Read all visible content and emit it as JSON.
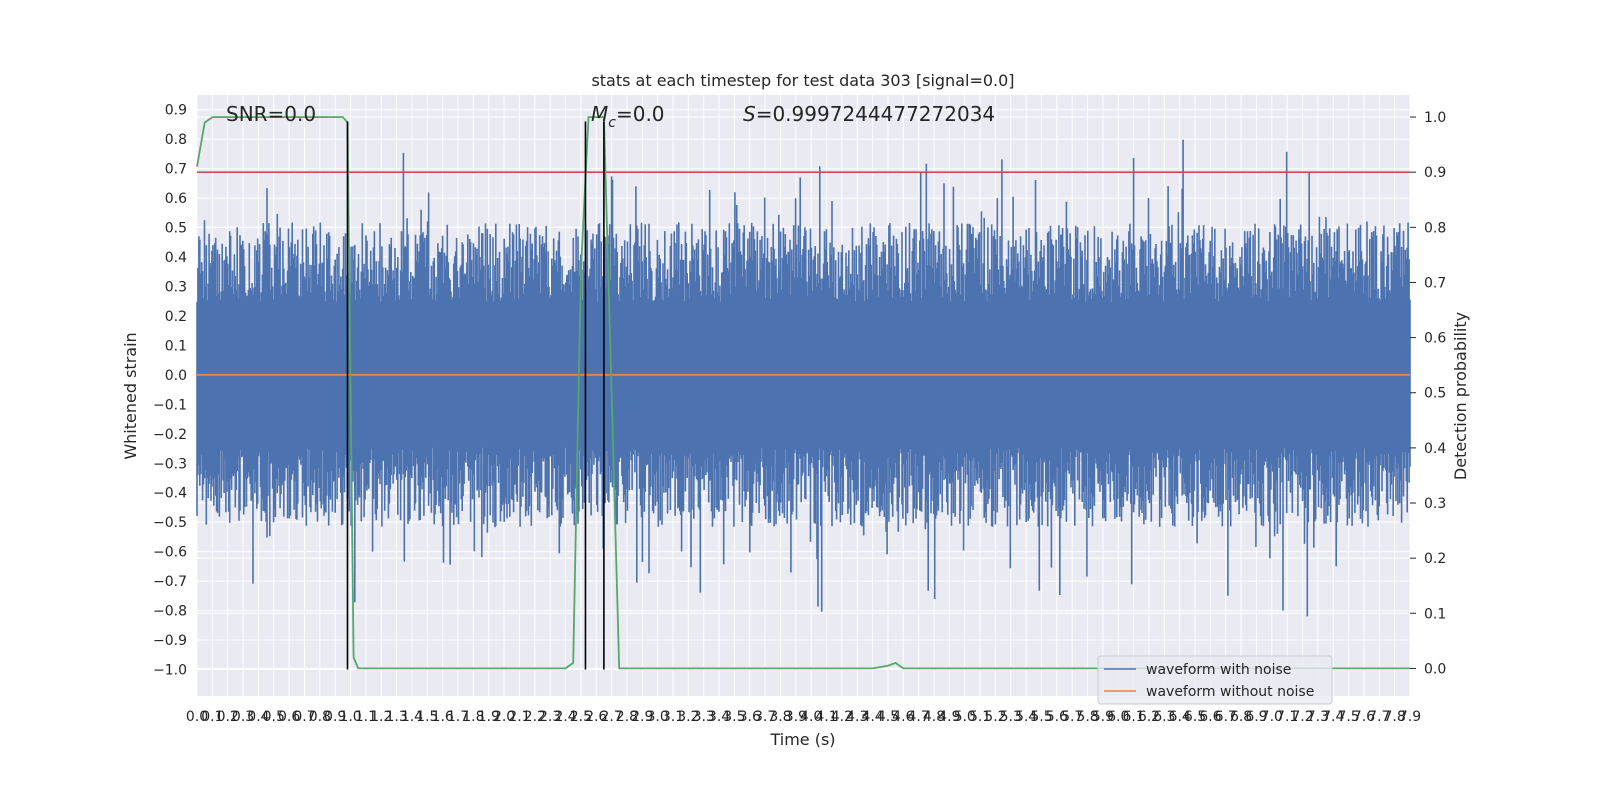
{
  "chart_data": {
    "type": "line",
    "title": "stats at each timestep for test data 303 [signal=0.0]",
    "xlabel": "Time (s)",
    "ylabel_left": "Whitened strain",
    "ylabel_right": "Detection probability",
    "xlim": [
      0.0,
      7.9
    ],
    "ylim_left": [
      -1.09,
      0.95
    ],
    "ylim_right": [
      -0.05,
      1.04
    ],
    "grid": true,
    "legend_position": "lower-right",
    "x_ticks": [
      "0.0",
      "0.1",
      "0.2",
      "0.3",
      "0.4",
      "0.5",
      "0.6",
      "0.7",
      "0.8",
      "0.9",
      "1.0",
      "1.1",
      "1.2",
      "1.3",
      "1.4",
      "1.5",
      "1.6",
      "1.7",
      "1.8",
      "1.9",
      "2.0",
      "2.1",
      "2.2",
      "2.3",
      "2.4",
      "2.5",
      "2.6",
      "2.7",
      "2.8",
      "2.9",
      "3.0",
      "3.1",
      "3.2",
      "3.3",
      "3.4",
      "3.5",
      "3.6",
      "3.7",
      "3.8",
      "3.9",
      "4.0",
      "4.1",
      "4.2",
      "4.3",
      "4.4",
      "4.5",
      "4.6",
      "4.7",
      "4.8",
      "4.9",
      "5.0",
      "5.1",
      "5.2",
      "5.3",
      "5.4",
      "5.5",
      "5.6",
      "5.7",
      "5.8",
      "5.9",
      "6.0",
      "6.1",
      "6.2",
      "6.3",
      "6.4",
      "6.5",
      "6.6",
      "6.7",
      "6.8",
      "6.9",
      "7.0",
      "7.1",
      "7.2",
      "7.3",
      "7.4",
      "7.5",
      "7.6",
      "7.7",
      "7.8",
      "7.9"
    ],
    "y_ticks_left": [
      "0.9",
      "0.8",
      "0.7",
      "0.6",
      "0.5",
      "0.4",
      "0.3",
      "0.2",
      "0.1",
      "0.0",
      "−0.1",
      "−0.2",
      "−0.3",
      "−0.4",
      "−0.5",
      "−0.6",
      "−0.7",
      "−0.8",
      "−0.9",
      "−1.0"
    ],
    "y_ticks_left_values": [
      0.9,
      0.8,
      0.7,
      0.6,
      0.5,
      0.4,
      0.3,
      0.2,
      0.1,
      0.0,
      -0.1,
      -0.2,
      -0.3,
      -0.4,
      -0.5,
      -0.6,
      -0.7,
      -0.8,
      -0.9,
      -1.0
    ],
    "y_ticks_right": [
      "1.0",
      "0.9",
      "0.8",
      "0.7",
      "0.6",
      "0.5",
      "0.4",
      "0.3",
      "0.2",
      "0.1",
      "0.0"
    ],
    "y_ticks_right_values": [
      1.0,
      0.9,
      0.8,
      0.7,
      0.6,
      0.5,
      0.4,
      0.3,
      0.2,
      0.1,
      0.0
    ],
    "annotations": {
      "snr": "SNR=0.0",
      "mc_symbol": "M",
      "mc_sub": "c",
      "mc_value": "=0.0",
      "s_symbol": "S",
      "s_value": "=0.9997244477272034"
    },
    "series": [
      {
        "name": "waveform with noise",
        "axis": "left",
        "color": "#4c72b0",
        "kind": "noise",
        "envelope_peak": 0.86,
        "envelope_trough": -0.91,
        "typical_amplitude": 0.45
      },
      {
        "name": "waveform without noise",
        "axis": "left",
        "color": "#dd8452",
        "x": [
          0.0,
          7.9
        ],
        "y": [
          0.0,
          0.0
        ]
      },
      {
        "axis": "right",
        "color": "#55a868",
        "x": [
          0.0,
          0.05,
          0.1,
          0.2,
          0.6,
          0.95,
          0.98,
          1.02,
          1.05,
          1.1,
          1.3,
          2.0,
          2.4,
          2.45,
          2.5,
          2.55,
          2.6,
          2.65,
          2.7,
          2.75,
          2.8,
          3.0,
          4.0,
          4.2,
          4.4,
          4.5,
          4.55,
          4.6,
          4.65,
          5.0,
          6.0,
          7.0,
          7.9
        ],
        "y": [
          0.91,
          0.99,
          1.0,
          1.0,
          1.0,
          1.0,
          0.99,
          0.02,
          0.0,
          0.0,
          0.0,
          0.0,
          0.0,
          0.01,
          0.72,
          1.0,
          1.0,
          1.0,
          0.5,
          0.0,
          0.0,
          0.0,
          0.0,
          0.0,
          0.0,
          0.005,
          0.01,
          0.0,
          0.0,
          0.0,
          0.0,
          0.0,
          0.0
        ]
      },
      {
        "axis": "right",
        "color": "#c44e52",
        "x": [
          0.0,
          7.9
        ],
        "y": [
          0.9,
          0.9
        ]
      }
    ],
    "vertical_lines": [
      {
        "x": 0.98,
        "y_from": -1.0,
        "y_to": 0.86,
        "axis": "left",
        "color": "#000000"
      },
      {
        "x": 2.53,
        "y_from": -1.0,
        "y_to": 0.86,
        "axis": "left",
        "color": "#000000"
      },
      {
        "x": 2.65,
        "y_from": -1.0,
        "y_to": 0.86,
        "axis": "left",
        "color": "#000000"
      }
    ],
    "legend": [
      {
        "label": "waveform with noise",
        "color": "#4c72b0"
      },
      {
        "label": "waveform without noise",
        "color": "#dd8452"
      }
    ]
  }
}
